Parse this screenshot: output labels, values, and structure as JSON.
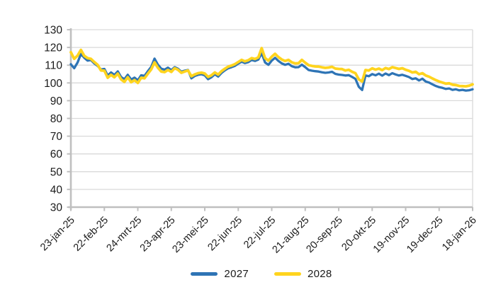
{
  "chart_data": {
    "type": "line",
    "title": "",
    "x_tick_labels": [
      "23-jan-25",
      "22-feb-25",
      "24-mrt-25",
      "23-apr-25",
      "23-mei-25",
      "22-jun-25",
      "22-jul-25",
      "21-aug-25",
      "20-sep-25",
      "20-okt-25",
      "19-nov-25",
      "19-dec-25",
      "18-jan-26"
    ],
    "y_ticks": [
      130,
      120,
      110,
      100,
      90,
      80,
      70,
      60,
      50,
      40,
      30
    ],
    "ylim": [
      30,
      130
    ],
    "grid": true,
    "legend_position": "bottom",
    "x_points_evenly_spaced": 121,
    "series": [
      {
        "name": "2027",
        "color": "#2E74B5",
        "values": [
          110.5,
          108.3,
          111.5,
          116.3,
          114.2,
          112.6,
          112.9,
          111.0,
          109.6,
          107.6,
          107.9,
          104.2,
          105.9,
          104.5,
          106.5,
          103.3,
          102.1,
          104.6,
          101.9,
          103.0,
          101.5,
          104.3,
          104.0,
          106.6,
          109.0,
          113.7,
          110.3,
          108.0,
          107.5,
          108.6,
          107.2,
          108.9,
          108.0,
          106.3,
          106.9,
          107.3,
          102.6,
          103.9,
          104.6,
          104.9,
          104.3,
          102.1,
          103.2,
          104.9,
          103.6,
          105.6,
          107.1,
          108.3,
          108.9,
          109.6,
          110.9,
          112.0,
          111.2,
          111.7,
          112.9,
          112.4,
          113.2,
          116.8,
          111.5,
          110.2,
          112.6,
          114.2,
          112.4,
          111.0,
          110.2,
          110.8,
          109.4,
          108.8,
          108.9,
          110.3,
          108.9,
          107.3,
          106.9,
          106.6,
          106.4,
          106.0,
          105.7,
          105.9,
          106.3,
          105.1,
          104.7,
          104.5,
          104.2,
          104.4,
          103.4,
          102.3,
          97.8,
          96.0,
          104.2,
          103.8,
          105.0,
          104.3,
          105.2,
          104.1,
          105.3,
          104.4,
          105.5,
          104.8,
          104.2,
          104.6,
          104.0,
          103.3,
          102.2,
          102.6,
          101.4,
          102.4,
          100.8,
          100.2,
          99.2,
          98.3,
          97.6,
          97.2,
          96.6,
          96.9,
          96.1,
          96.4,
          95.8,
          96.1,
          95.7,
          95.9,
          96.4
        ]
      },
      {
        "name": "2028",
        "color": "#FFD41E",
        "values": [
          117.3,
          113.6,
          115.4,
          118.6,
          115.3,
          114.0,
          113.6,
          111.8,
          110.2,
          107.0,
          106.9,
          102.9,
          104.6,
          103.2,
          105.2,
          102.0,
          100.6,
          103.2,
          100.4,
          101.6,
          100.0,
          102.9,
          102.6,
          105.2,
          107.6,
          111.6,
          108.6,
          106.4,
          106.1,
          107.3,
          106.2,
          108.3,
          107.4,
          105.7,
          106.4,
          107.0,
          103.8,
          104.8,
          105.5,
          105.8,
          105.3,
          103.4,
          104.3,
          105.9,
          104.7,
          106.6,
          108.0,
          109.2,
          109.8,
          110.6,
          111.8,
          113.0,
          112.2,
          112.8,
          114.0,
          113.5,
          114.4,
          119.6,
          114.0,
          112.6,
          114.8,
          116.4,
          114.6,
          113.2,
          112.4,
          113.0,
          111.6,
          111.0,
          111.1,
          113.0,
          111.4,
          110.0,
          109.6,
          109.3,
          109.2,
          108.8,
          108.5,
          108.7,
          109.1,
          108.1,
          107.9,
          107.8,
          107.0,
          107.4,
          106.3,
          105.5,
          102.0,
          100.8,
          107.3,
          107.0,
          108.2,
          107.5,
          108.1,
          107.2,
          108.4,
          107.8,
          108.9,
          108.4,
          107.9,
          108.3,
          107.4,
          106.8,
          105.9,
          106.3,
          104.9,
          105.5,
          104.2,
          103.5,
          102.5,
          101.6,
          100.8,
          100.2,
          99.6,
          99.8,
          99.0,
          98.8,
          98.3,
          98.2,
          98.1,
          98.5,
          99.2
        ]
      }
    ],
    "colors": {
      "gridline": "#D9D9D9",
      "axis": "#BFBFBF",
      "plot_right_border": "#D9D9D9",
      "label_text": "#1A1A1A"
    }
  }
}
